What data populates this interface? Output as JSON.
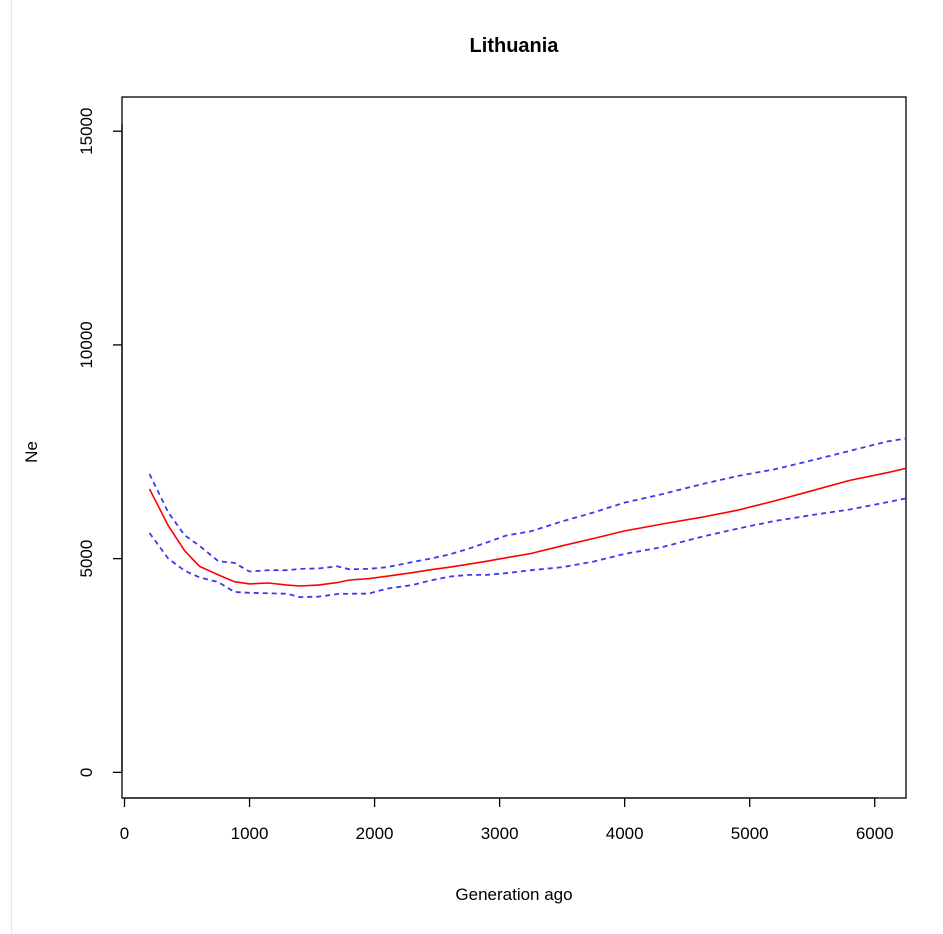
{
  "chart_data": {
    "type": "line",
    "title": "Lithuania",
    "xlabel": "Generation ago",
    "ylabel": "Ne",
    "xlim": [
      -20,
      6250
    ],
    "ylim": [
      -600,
      15800
    ],
    "xticks": [
      0,
      1000,
      2000,
      3000,
      4000,
      5000,
      6000
    ],
    "yticks": [
      0,
      5000,
      10000,
      15000
    ],
    "xtick_labels": [
      "0",
      "1000",
      "2000",
      "3000",
      "4000",
      "5000",
      "6000"
    ],
    "ytick_labels": [
      "0",
      "5000",
      "10000",
      "15000"
    ],
    "grid": false,
    "series": [
      {
        "role": "estimate",
        "color": "#ff0000",
        "style": "solid",
        "x": [
          200,
          350,
          480,
          600,
          750,
          880,
          1000,
          1150,
          1300,
          1400,
          1550,
          1700,
          1800,
          1950,
          2100,
          2300,
          2450,
          2600,
          2750,
          2900,
          3050,
          3250,
          3500,
          3750,
          4000,
          4300,
          4600,
          4900,
          5200,
          5500,
          5800,
          6100,
          6250
        ],
        "y": [
          6630,
          5770,
          5190,
          4820,
          4620,
          4460,
          4410,
          4430,
          4380,
          4360,
          4380,
          4440,
          4500,
          4530,
          4590,
          4670,
          4740,
          4800,
          4870,
          4940,
          5020,
          5120,
          5300,
          5470,
          5650,
          5810,
          5960,
          6130,
          6350,
          6590,
          6830,
          7010,
          7110
        ]
      },
      {
        "role": "upper",
        "color": "#3a3af0",
        "style": "dashed",
        "x": [
          200,
          350,
          480,
          600,
          750,
          880,
          1000,
          1150,
          1300,
          1400,
          1550,
          1700,
          1800,
          1950,
          2100,
          2300,
          2450,
          2600,
          2750,
          2900,
          3050,
          3250,
          3500,
          3750,
          4000,
          4300,
          4600,
          4900,
          5200,
          5500,
          5800,
          6100,
          6250
        ],
        "y": [
          6980,
          6080,
          5550,
          5300,
          4940,
          4900,
          4700,
          4730,
          4730,
          4760,
          4770,
          4820,
          4750,
          4760,
          4800,
          4920,
          5000,
          5100,
          5230,
          5380,
          5540,
          5640,
          5870,
          6080,
          6310,
          6510,
          6730,
          6930,
          7090,
          7300,
          7520,
          7740,
          7810
        ]
      },
      {
        "role": "lower",
        "color": "#3a3af0",
        "style": "dashed",
        "x": [
          200,
          350,
          480,
          600,
          750,
          880,
          1000,
          1150,
          1300,
          1400,
          1550,
          1700,
          1800,
          1950,
          2100,
          2300,
          2450,
          2600,
          2750,
          2900,
          3050,
          3250,
          3500,
          3750,
          4000,
          4300,
          4600,
          4900,
          5200,
          5500,
          5800,
          6100,
          6250
        ],
        "y": [
          5600,
          5000,
          4720,
          4560,
          4450,
          4220,
          4200,
          4190,
          4180,
          4100,
          4110,
          4170,
          4180,
          4180,
          4300,
          4380,
          4490,
          4580,
          4620,
          4620,
          4660,
          4730,
          4800,
          4930,
          5110,
          5270,
          5500,
          5700,
          5880,
          6020,
          6150,
          6320,
          6410
        ]
      }
    ]
  }
}
